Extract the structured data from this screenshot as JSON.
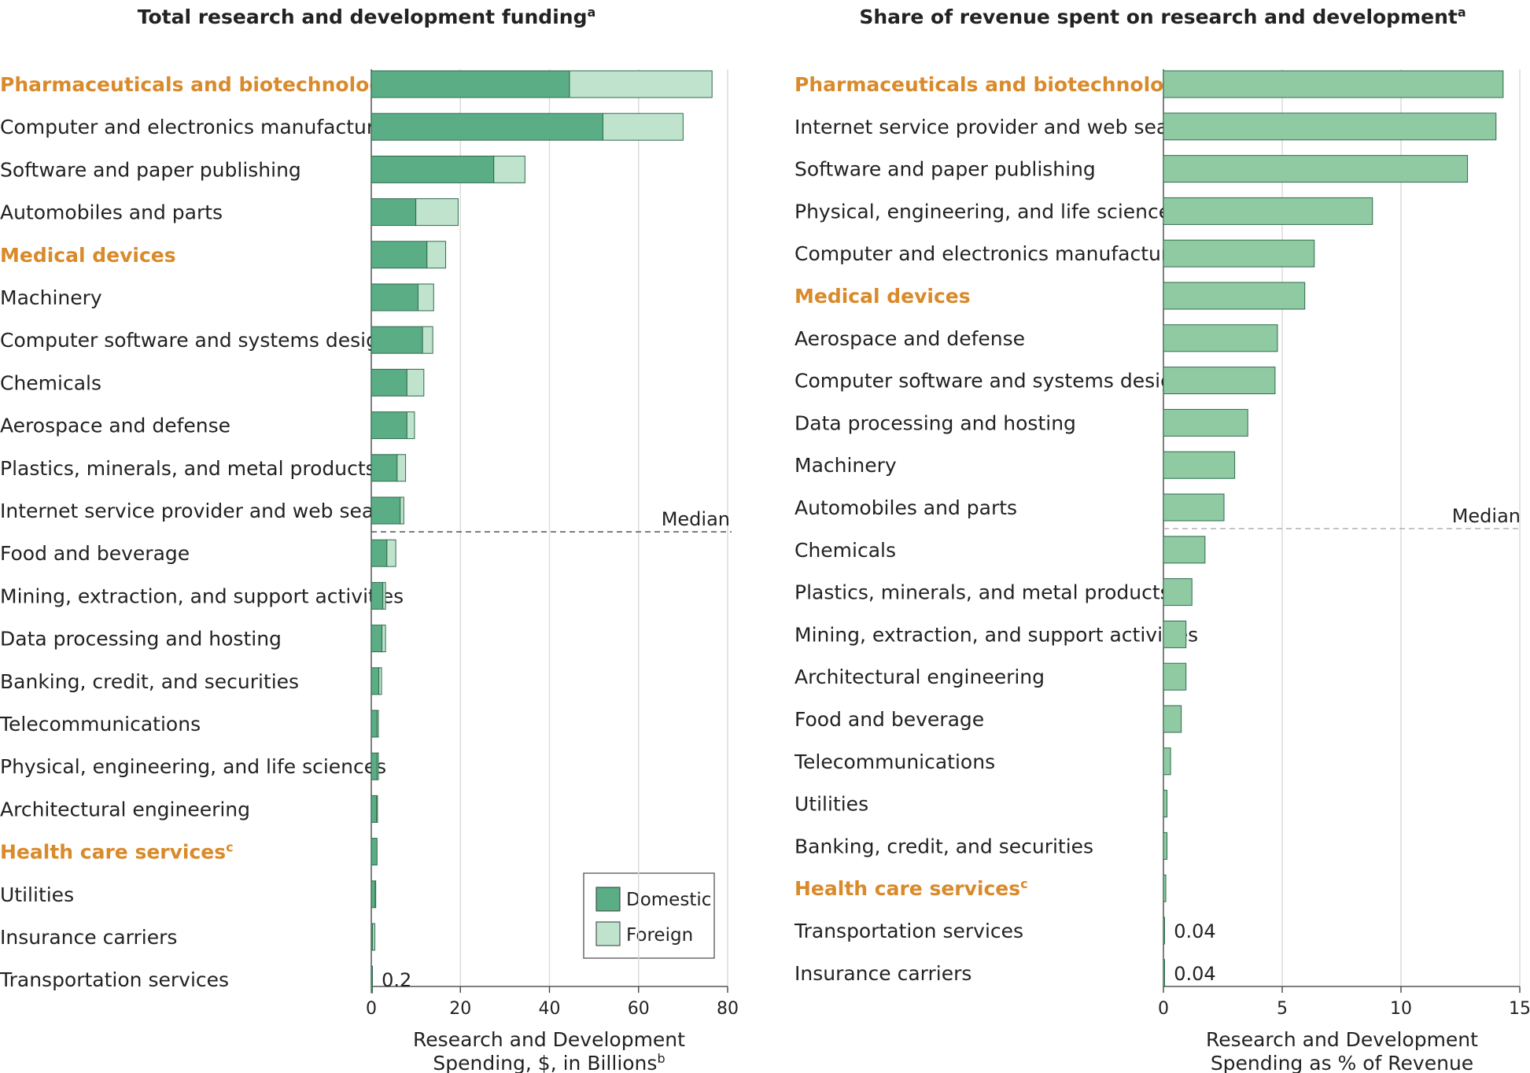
{
  "colors": {
    "domestic": "#5aad84",
    "foreign": "#bfe3cc",
    "share": "#8fcaa3",
    "highlight": "#d98a2b"
  },
  "chart_data": [
    {
      "type": "bar",
      "orientation": "horizontal",
      "stacked": true,
      "title": "Total research and development funding",
      "title_sup": "a",
      "xlabel_line1": "Research and Development",
      "xlabel_line2": "Spending, $, in Billions",
      "xlabel_sup": "b",
      "xlim": [
        0,
        80
      ],
      "xticks": [
        0,
        20,
        40,
        60,
        80
      ],
      "grid": true,
      "median_label": "Median",
      "median_after_index": 10,
      "legend_position": "bottom-right",
      "legend": [
        "Domestic",
        "Foreign"
      ],
      "categories": [
        {
          "label": "Pharmaceuticals and  biotechnology",
          "sup": "",
          "highlight": true,
          "domestic": 44.5,
          "foreign": 32,
          "annotation": ""
        },
        {
          "label": "Computer and electronics manufacturing",
          "sup": "",
          "highlight": false,
          "domestic": 52,
          "foreign": 18,
          "annotation": ""
        },
        {
          "label": "Software and paper publishing",
          "sup": "",
          "highlight": false,
          "domestic": 27.5,
          "foreign": 7,
          "annotation": ""
        },
        {
          "label": "Automobiles and parts",
          "sup": "",
          "highlight": false,
          "domestic": 10,
          "foreign": 9.5,
          "annotation": ""
        },
        {
          "label": "Medical devices",
          "sup": "",
          "highlight": true,
          "domestic": 12.5,
          "foreign": 4.2,
          "annotation": ""
        },
        {
          "label": "Machinery",
          "sup": "",
          "highlight": false,
          "domestic": 10.5,
          "foreign": 3.5,
          "annotation": ""
        },
        {
          "label": "Computer software and systems design",
          "sup": "",
          "highlight": false,
          "domestic": 11.5,
          "foreign": 2.3,
          "annotation": ""
        },
        {
          "label": "Chemicals",
          "sup": "",
          "highlight": false,
          "domestic": 8,
          "foreign": 3.8,
          "annotation": ""
        },
        {
          "label": "Aerospace and defense",
          "sup": "",
          "highlight": false,
          "domestic": 8,
          "foreign": 1.7,
          "annotation": ""
        },
        {
          "label": "Plastics, minerals, and metal products",
          "sup": "",
          "highlight": false,
          "domestic": 5.8,
          "foreign": 1.9,
          "annotation": ""
        },
        {
          "label": "Internet service provider and web search",
          "sup": "",
          "highlight": false,
          "domestic": 6.5,
          "foreign": 0.8,
          "annotation": ""
        },
        {
          "label": "Food and beverage",
          "sup": "",
          "highlight": false,
          "domestic": 3.5,
          "foreign": 2,
          "annotation": ""
        },
        {
          "label": "Mining, extraction, and support activities",
          "sup": "",
          "highlight": false,
          "domestic": 2.6,
          "foreign": 0.6,
          "annotation": ""
        },
        {
          "label": "Data processing and hosting",
          "sup": "",
          "highlight": false,
          "domestic": 2.4,
          "foreign": 0.8,
          "annotation": ""
        },
        {
          "label": "Banking, credit, and securities",
          "sup": "",
          "highlight": false,
          "domestic": 1.7,
          "foreign": 0.6,
          "annotation": ""
        },
        {
          "label": "Telecommunications",
          "sup": "",
          "highlight": false,
          "domestic": 1.3,
          "foreign": 0.3,
          "annotation": ""
        },
        {
          "label": "Physical, engineering, and life sciences",
          "sup": "",
          "highlight": false,
          "domestic": 1.3,
          "foreign": 0.3,
          "annotation": ""
        },
        {
          "label": "Architectural engineering",
          "sup": "",
          "highlight": false,
          "domestic": 1.2,
          "foreign": 0.2,
          "annotation": ""
        },
        {
          "label": "Health care services",
          "sup": "c",
          "highlight": true,
          "domestic": 1.3,
          "foreign": 0,
          "annotation": ""
        },
        {
          "label": "Utilities",
          "sup": "",
          "highlight": false,
          "domestic": 0.9,
          "foreign": 0.1,
          "annotation": ""
        },
        {
          "label": "Insurance carriers",
          "sup": "",
          "highlight": false,
          "domestic": 0.3,
          "foreign": 0.5,
          "annotation": ""
        },
        {
          "label": "Transportation services",
          "sup": "",
          "highlight": false,
          "domestic": 0.2,
          "foreign": 0,
          "annotation": "0.2"
        }
      ]
    },
    {
      "type": "bar",
      "orientation": "horizontal",
      "stacked": false,
      "title": "Share of revenue spent on research and development",
      "title_sup": "a",
      "xlabel_line1": "Research and Development",
      "xlabel_line2": "Spending as % of Revenue",
      "xlabel_sup": "",
      "xlim": [
        0,
        15
      ],
      "xticks": [
        0,
        5,
        10,
        15
      ],
      "grid": true,
      "median_label": "Median",
      "median_after_index": 10,
      "categories": [
        {
          "label": "Pharmaceuticals and  biotechnology",
          "sup": "",
          "highlight": true,
          "value": 14.3,
          "annotation": ""
        },
        {
          "label": "Internet service provider and web search",
          "sup": "",
          "highlight": false,
          "value": 14.0,
          "annotation": ""
        },
        {
          "label": "Software and paper publishing",
          "sup": "",
          "highlight": false,
          "value": 12.8,
          "annotation": ""
        },
        {
          "label": "Physical, engineering, and life sciences",
          "sup": "",
          "highlight": false,
          "value": 8.8,
          "annotation": ""
        },
        {
          "label": "Computer and electronics manufacturing",
          "sup": "",
          "highlight": false,
          "value": 6.35,
          "annotation": ""
        },
        {
          "label": "Medical devices",
          "sup": "",
          "highlight": true,
          "value": 5.95,
          "annotation": ""
        },
        {
          "label": "Aerospace and defense",
          "sup": "",
          "highlight": false,
          "value": 4.8,
          "annotation": ""
        },
        {
          "label": "Computer software and systems design",
          "sup": "",
          "highlight": false,
          "value": 4.7,
          "annotation": ""
        },
        {
          "label": "Data processing and hosting",
          "sup": "",
          "highlight": false,
          "value": 3.55,
          "annotation": ""
        },
        {
          "label": "Machinery",
          "sup": "",
          "highlight": false,
          "value": 3.0,
          "annotation": ""
        },
        {
          "label": "Automobiles and parts",
          "sup": "",
          "highlight": false,
          "value": 2.55,
          "annotation": ""
        },
        {
          "label": "Chemicals",
          "sup": "",
          "highlight": false,
          "value": 1.75,
          "annotation": ""
        },
        {
          "label": "Plastics, minerals, and metal products",
          "sup": "",
          "highlight": false,
          "value": 1.2,
          "annotation": ""
        },
        {
          "label": "Mining, extraction, and support activities",
          "sup": "",
          "highlight": false,
          "value": 0.95,
          "annotation": ""
        },
        {
          "label": "Architectural engineering",
          "sup": "",
          "highlight": false,
          "value": 0.95,
          "annotation": ""
        },
        {
          "label": "Food and beverage",
          "sup": "",
          "highlight": false,
          "value": 0.75,
          "annotation": ""
        },
        {
          "label": "Telecommunications",
          "sup": "",
          "highlight": false,
          "value": 0.3,
          "annotation": ""
        },
        {
          "label": "Utilities",
          "sup": "",
          "highlight": false,
          "value": 0.15,
          "annotation": ""
        },
        {
          "label": "Banking, credit, and securities",
          "sup": "",
          "highlight": false,
          "value": 0.15,
          "annotation": ""
        },
        {
          "label": "Health care services",
          "sup": "c",
          "highlight": true,
          "value": 0.1,
          "annotation": ""
        },
        {
          "label": "Transportation services",
          "sup": "",
          "highlight": false,
          "value": 0.04,
          "annotation": "0.04"
        },
        {
          "label": "Insurance carriers",
          "sup": "",
          "highlight": false,
          "value": 0.04,
          "annotation": "0.04"
        }
      ]
    }
  ]
}
